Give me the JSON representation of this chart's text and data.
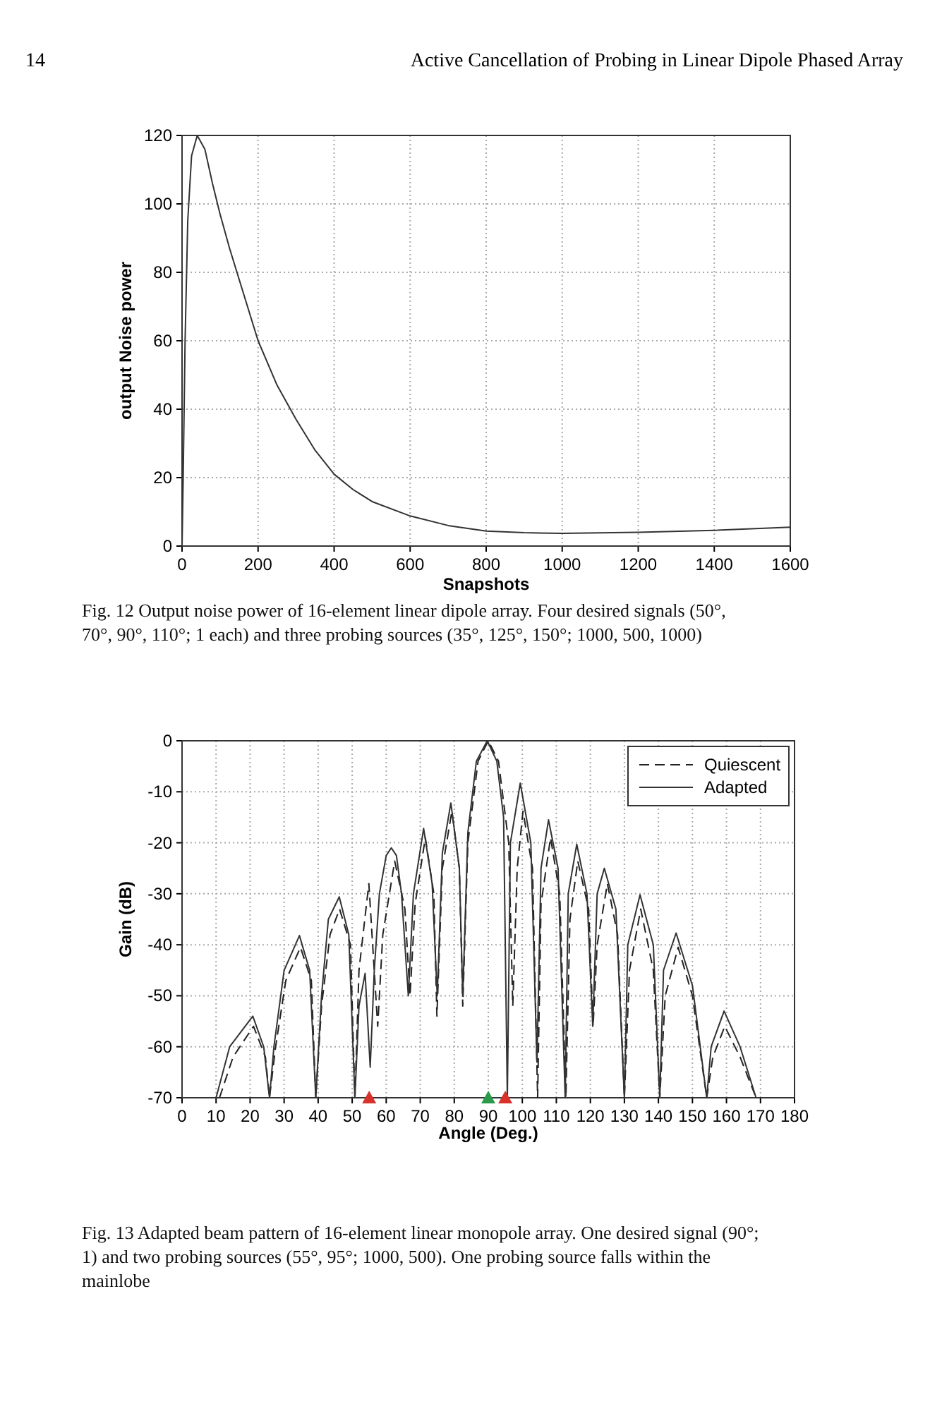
{
  "chart_data": [
    {
      "type": "line",
      "xlabel": "Snapshots",
      "ylabel": "output Noise power",
      "annotations": [
        "14",
        "Active Cancellation of Probing in Linear Dipole Phased Array",
        "Fig. 12 Output noise power of 16-element linear dipole array. Four desired signals (50°, 70°, 90°, 110°; 1 each) and three probing sources (35°, 125°, 150°; 1000, 500, 1000)"
      ],
      "xlim": [
        0,
        1600
      ],
      "xticks": [
        0,
        200,
        400,
        600,
        800,
        1000,
        1200,
        1400,
        1600
      ],
      "ylim": [
        0,
        120
      ],
      "yticks": [
        0,
        20,
        40,
        60,
        80,
        100,
        120
      ],
      "grid": true,
      "legend": false,
      "series": [
        {
          "color": "#333333",
          "line_style": "solid",
          "x": [
            0,
            3,
            8,
            15,
            25,
            40,
            60,
            80,
            100,
            125,
            150,
            200,
            250,
            300,
            350,
            400,
            450,
            500,
            600,
            700,
            800,
            900,
            1000,
            1200,
            1400,
            1600
          ],
          "values": [
            0,
            20,
            60,
            95,
            114,
            120,
            116,
            106,
            97,
            87,
            78,
            60,
            47,
            37,
            28,
            21,
            16.5,
            13,
            8.8,
            6,
            4.4,
            3.9,
            3.7,
            4,
            4.6,
            5.5
          ]
        }
      ]
    },
    {
      "type": "line",
      "xlabel": "Angle (Deg.)",
      "ylabel": "Gain (dB)",
      "annotations": [
        "Fig. 13 Adapted beam pattern of 16-element linear monopole array. One desired signal (90°; 1) and two probing sources (55°, 95°; 1000, 500). One probing source falls within the mainlobe"
      ],
      "xlim": [
        0,
        180
      ],
      "xticks": [
        0,
        10,
        20,
        30,
        40,
        50,
        60,
        70,
        80,
        90,
        100,
        110,
        120,
        130,
        140,
        150,
        160,
        170,
        180
      ],
      "ylim": [
        -70,
        0
      ],
      "yticks": [
        -70,
        -60,
        -50,
        -40,
        -30,
        -20,
        -10,
        0
      ],
      "grid": true,
      "legend": "top right",
      "series": [
        {
          "name": "Quiescent",
          "color": "#222222",
          "line_style": "dashed",
          "x": [
            11,
            15,
            21,
            24.5,
            25.7,
            27.5,
            30.5,
            34.8,
            38,
            39.3,
            41,
            43.5,
            46.3,
            49.5,
            50.8,
            52,
            54.9,
            57.5,
            59,
            62.5,
            65.5,
            67,
            68.5,
            71.5,
            74,
            74.9,
            76.5,
            79.3,
            81.5,
            82.5,
            84,
            87,
            90,
            93,
            96,
            97.2,
            98.5,
            100.2,
            103,
            104.5,
            105.5,
            108.3,
            111,
            112.8,
            114,
            116.3,
            119.5,
            120.8,
            122,
            125,
            128,
            130,
            131.5,
            134.8,
            138.5,
            140.4,
            142,
            145.8,
            150,
            154.2,
            156,
            159.5,
            164,
            168.7
          ],
          "values": [
            -70,
            -62,
            -56,
            -62,
            -70,
            -60,
            -47,
            -40.5,
            -47,
            -70,
            -52,
            -38,
            -33,
            -40,
            -70,
            -45,
            -28,
            -56,
            -38,
            -23.6,
            -33,
            -50,
            -32,
            -19,
            -30,
            -54,
            -25,
            -13.8,
            -25,
            -52,
            -20,
            -4,
            0,
            -4,
            -20,
            -52,
            -25,
            -13.8,
            -25,
            -70,
            -32,
            -19,
            -30,
            -70,
            -35,
            -23.6,
            -33,
            -56,
            -40,
            -28,
            -38,
            -70,
            -45,
            -33,
            -45,
            -70,
            -50,
            -40.5,
            -50,
            -70,
            -62,
            -56,
            -62,
            -70
          ]
        },
        {
          "name": "Adapted",
          "color": "#333333",
          "line_style": "solid",
          "x": [
            10,
            14,
            20.8,
            24,
            25.7,
            27,
            30,
            34.5,
            37.5,
            39.3,
            41,
            43,
            46.2,
            49,
            50.8,
            52,
            53.8,
            55.3,
            56.5,
            58,
            60,
            61.5,
            63,
            64.5,
            66.5,
            68,
            71,
            73.5,
            75,
            76.5,
            79,
            81.5,
            82.5,
            84,
            86.5,
            89.7,
            92.5,
            94.5,
            95.6,
            96.5,
            99.4,
            102.5,
            104.3,
            105.5,
            107.7,
            110.5,
            112.6,
            113.5,
            116,
            119,
            120.7,
            122,
            124.1,
            127.5,
            130,
            131,
            134.6,
            138.5,
            140.4,
            141.5,
            145.2,
            150,
            154.2,
            155.5,
            159.3,
            164,
            168.7
          ],
          "values": [
            -70,
            -60,
            -54,
            -60,
            -70,
            -60,
            -45,
            -38.2,
            -45,
            -70,
            -50,
            -35,
            -30.6,
            -38,
            -70,
            -52,
            -45.6,
            -64,
            -45,
            -30,
            -22.5,
            -21,
            -22.5,
            -30,
            -50,
            -30,
            -17.2,
            -28,
            -50,
            -22,
            -12.2,
            -25,
            -50,
            -18,
            -4,
            0,
            -4,
            -15,
            -70,
            -20,
            -8.3,
            -20,
            -63,
            -25,
            -15.5,
            -25,
            -70,
            -30,
            -20.3,
            -30,
            -56,
            -30,
            -25,
            -33,
            -70,
            -40,
            -30.2,
            -40,
            -70,
            -45,
            -37.7,
            -48,
            -70,
            -60,
            -53,
            -60,
            -70
          ]
        },
        {
          "type": "scatter",
          "color": "#d8322a",
          "marker": "triangle",
          "x": [
            55,
            95
          ],
          "values": [
            -70,
            -70
          ]
        },
        {
          "type": "scatter",
          "color": "#2a9a4a",
          "marker": "triangle",
          "x": [
            90
          ],
          "values": [
            -70
          ]
        }
      ]
    }
  ]
}
